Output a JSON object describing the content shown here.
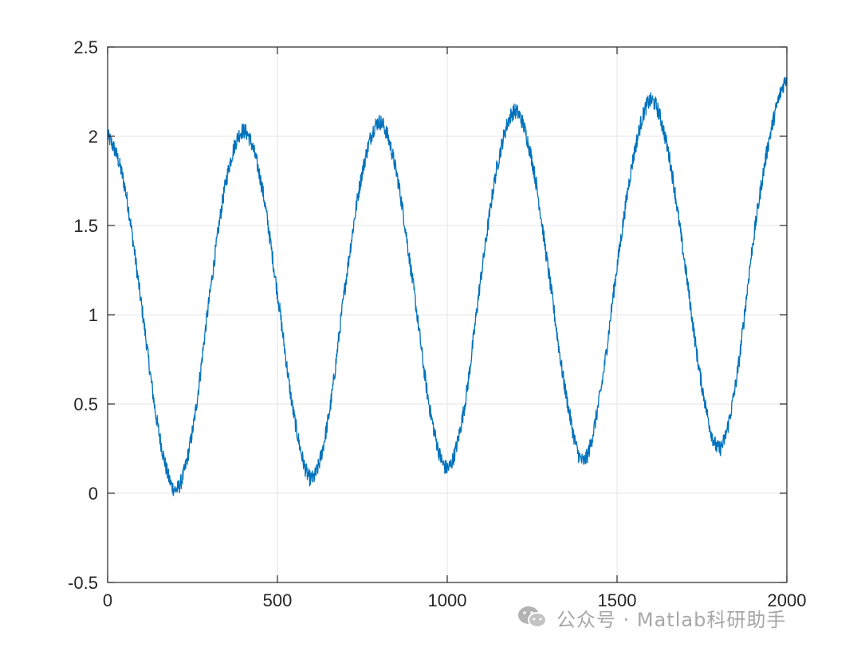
{
  "chart_data": {
    "type": "line",
    "title": "",
    "xlabel": "",
    "ylabel": "",
    "xlim": [
      0,
      2000
    ],
    "ylim": [
      -0.5,
      2.5
    ],
    "xticks": [
      0,
      500,
      1000,
      1500,
      2000
    ],
    "yticks": [
      -0.5,
      0,
      0.5,
      1,
      1.5,
      2,
      2.5
    ],
    "xtick_labels": [
      "0",
      "500",
      "1000",
      "1500",
      "2000"
    ],
    "ytick_labels": [
      "-0.5",
      "0",
      "0.5",
      "1",
      "1.5",
      "2",
      "2.5"
    ],
    "grid": true,
    "series": [
      {
        "color": "#0072BD",
        "x": [
          0,
          50,
          100,
          150,
          200,
          250,
          300,
          350,
          400,
          450,
          500,
          550,
          600,
          650,
          700,
          750,
          800,
          850,
          900,
          950,
          1000,
          1050,
          1100,
          1150,
          1200,
          1250,
          1300,
          1350,
          1400,
          1450,
          1500,
          1550,
          1600,
          1650,
          1700,
          1750,
          1800,
          1850,
          1900,
          1950,
          2000
        ],
        "y": [
          2.0,
          1.72,
          1.05,
          0.35,
          0.02,
          0.35,
          1.1,
          1.76,
          2.03,
          1.76,
          1.12,
          0.42,
          0.08,
          0.42,
          1.17,
          1.8,
          2.08,
          1.8,
          1.16,
          0.46,
          0.14,
          0.48,
          1.22,
          1.86,
          2.14,
          1.86,
          1.22,
          0.55,
          0.18,
          0.55,
          1.27,
          1.9,
          2.2,
          1.92,
          1.28,
          0.6,
          0.25,
          0.62,
          1.4,
          2.0,
          2.33
        ]
      }
    ]
  },
  "watermark": {
    "text": "公众号 · Matlab科研助手",
    "icon": "wechat-icon"
  }
}
